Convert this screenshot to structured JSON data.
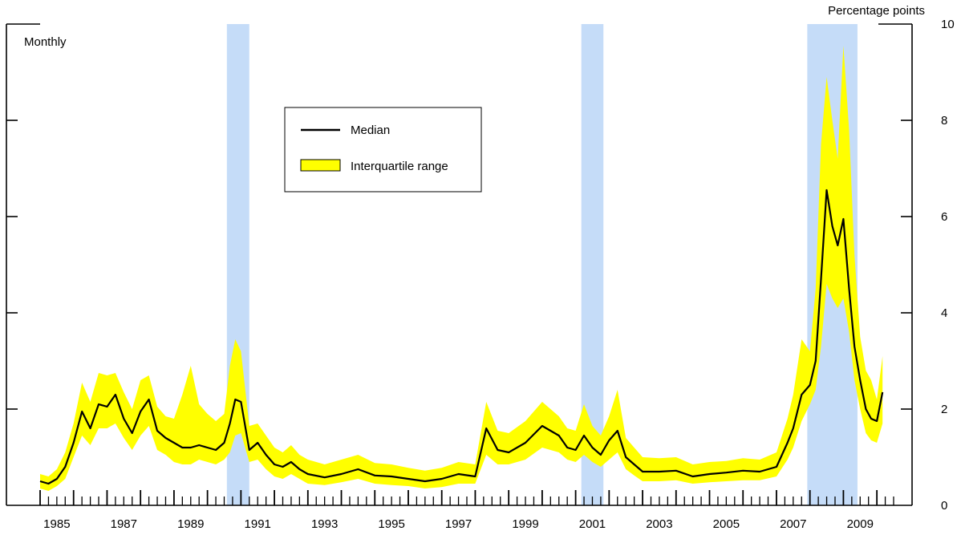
{
  "chart_data": {
    "type": "area",
    "frequency_label": "Monthly",
    "y_unit_label": "Percentage points",
    "ylim": [
      0,
      10
    ],
    "y_ticks": [
      0,
      2,
      4,
      6,
      8,
      10
    ],
    "xlim": [
      1984.5,
      2010.5
    ],
    "x_tick_labels": [
      "1985",
      "1987",
      "1989",
      "1991",
      "1993",
      "1995",
      "1997",
      "1999",
      "2001",
      "2003",
      "2005",
      "2007",
      "2009"
    ],
    "recessions": [
      {
        "start": 1990.58,
        "end": 1991.25
      },
      {
        "start": 2001.17,
        "end": 2001.83
      },
      {
        "start": 2007.92,
        "end": 2009.42
      }
    ],
    "legend": {
      "position": "upper-center",
      "entries": [
        {
          "label": "Median",
          "kind": "line"
        },
        {
          "label": "Interquartile range",
          "kind": "band"
        }
      ]
    },
    "colors": {
      "median": "#000000",
      "band": "#ffff00",
      "recession": "#c5dcf8"
    },
    "series": [
      {
        "name": "Median",
        "x": [
          1985.0,
          1985.25,
          1985.5,
          1985.75,
          1986.0,
          1986.25,
          1986.5,
          1986.75,
          1987.0,
          1987.25,
          1987.5,
          1987.75,
          1988.0,
          1988.25,
          1988.5,
          1988.75,
          1989.0,
          1989.25,
          1989.5,
          1989.75,
          1990.0,
          1990.25,
          1990.5,
          1990.67,
          1990.83,
          1991.0,
          1991.25,
          1991.5,
          1991.75,
          1992.0,
          1992.25,
          1992.5,
          1992.75,
          1993.0,
          1993.5,
          1994.0,
          1994.5,
          1995.0,
          1995.5,
          1996.0,
          1996.5,
          1997.0,
          1997.5,
          1998.0,
          1998.33,
          1998.67,
          1999.0,
          1999.5,
          2000.0,
          2000.5,
          2000.75,
          2001.0,
          2001.25,
          2001.5,
          2001.75,
          2002.0,
          2002.25,
          2002.5,
          2002.75,
          2003.0,
          2003.5,
          2004.0,
          2004.5,
          2005.0,
          2005.5,
          2006.0,
          2006.5,
          2007.0,
          2007.33,
          2007.5,
          2007.75,
          2008.0,
          2008.17,
          2008.33,
          2008.5,
          2008.67,
          2008.83,
          2009.0,
          2009.17,
          2009.33,
          2009.5,
          2009.67,
          2009.83,
          2010.0,
          2010.17
        ],
        "values": [
          0.5,
          0.45,
          0.55,
          0.8,
          1.3,
          1.95,
          1.6,
          2.1,
          2.05,
          2.3,
          1.8,
          1.5,
          1.95,
          2.2,
          1.55,
          1.4,
          1.3,
          1.2,
          1.2,
          1.25,
          1.2,
          1.15,
          1.3,
          1.7,
          2.2,
          2.15,
          1.15,
          1.3,
          1.05,
          0.85,
          0.8,
          0.9,
          0.75,
          0.65,
          0.58,
          0.65,
          0.75,
          0.62,
          0.6,
          0.55,
          0.5,
          0.55,
          0.65,
          0.6,
          1.6,
          1.15,
          1.1,
          1.3,
          1.65,
          1.45,
          1.2,
          1.15,
          1.45,
          1.2,
          1.05,
          1.35,
          1.55,
          1.0,
          0.85,
          0.7,
          0.7,
          0.72,
          0.6,
          0.65,
          0.68,
          0.72,
          0.7,
          0.8,
          1.3,
          1.6,
          2.3,
          2.5,
          3.0,
          4.7,
          6.55,
          5.8,
          5.4,
          5.95,
          4.5,
          3.3,
          2.6,
          2.0,
          1.8,
          1.75,
          2.35
        ]
      },
      {
        "name": "Interquartile range",
        "x": [
          1985.0,
          1985.25,
          1985.5,
          1985.75,
          1986.0,
          1986.25,
          1986.5,
          1986.75,
          1987.0,
          1987.25,
          1987.5,
          1987.75,
          1988.0,
          1988.25,
          1988.5,
          1988.75,
          1989.0,
          1989.25,
          1989.5,
          1989.75,
          1990.0,
          1990.25,
          1990.5,
          1990.67,
          1990.83,
          1991.0,
          1991.25,
          1991.5,
          1991.75,
          1992.0,
          1992.25,
          1992.5,
          1992.75,
          1993.0,
          1993.5,
          1994.0,
          1994.5,
          1995.0,
          1995.5,
          1996.0,
          1996.5,
          1997.0,
          1997.5,
          1998.0,
          1998.33,
          1998.67,
          1999.0,
          1999.5,
          2000.0,
          2000.5,
          2000.75,
          2001.0,
          2001.25,
          2001.5,
          2001.75,
          2002.0,
          2002.25,
          2002.5,
          2002.75,
          2003.0,
          2003.5,
          2004.0,
          2004.5,
          2005.0,
          2005.5,
          2006.0,
          2006.5,
          2007.0,
          2007.33,
          2007.5,
          2007.75,
          2008.0,
          2008.17,
          2008.33,
          2008.5,
          2008.67,
          2008.83,
          2009.0,
          2009.17,
          2009.33,
          2009.5,
          2009.67,
          2009.83,
          2010.0,
          2010.17
        ],
        "lower": [
          0.35,
          0.3,
          0.4,
          0.55,
          1.0,
          1.45,
          1.25,
          1.6,
          1.6,
          1.7,
          1.4,
          1.15,
          1.45,
          1.65,
          1.15,
          1.05,
          0.9,
          0.85,
          0.85,
          0.95,
          0.9,
          0.85,
          0.95,
          1.1,
          1.45,
          1.5,
          0.9,
          0.95,
          0.75,
          0.6,
          0.55,
          0.65,
          0.55,
          0.45,
          0.42,
          0.48,
          0.55,
          0.45,
          0.42,
          0.4,
          0.35,
          0.38,
          0.45,
          0.45,
          1.05,
          0.85,
          0.85,
          0.95,
          1.2,
          1.1,
          0.95,
          0.9,
          1.05,
          0.9,
          0.8,
          0.95,
          1.1,
          0.75,
          0.62,
          0.5,
          0.5,
          0.52,
          0.45,
          0.48,
          0.5,
          0.52,
          0.52,
          0.6,
          0.95,
          1.2,
          1.75,
          2.1,
          2.4,
          3.3,
          4.6,
          4.3,
          4.1,
          4.3,
          3.6,
          2.6,
          2.0,
          1.5,
          1.35,
          1.3,
          1.7
        ],
        "upper": [
          0.65,
          0.6,
          0.75,
          1.1,
          1.7,
          2.55,
          2.15,
          2.75,
          2.7,
          2.75,
          2.35,
          2.0,
          2.6,
          2.7,
          2.05,
          1.85,
          1.8,
          2.3,
          2.9,
          2.1,
          1.9,
          1.75,
          1.9,
          2.9,
          3.45,
          3.2,
          1.65,
          1.7,
          1.45,
          1.2,
          1.1,
          1.25,
          1.05,
          0.95,
          0.85,
          0.95,
          1.05,
          0.88,
          0.85,
          0.78,
          0.72,
          0.78,
          0.9,
          0.85,
          2.15,
          1.55,
          1.5,
          1.75,
          2.15,
          1.85,
          1.6,
          1.55,
          2.1,
          1.65,
          1.45,
          1.85,
          2.4,
          1.4,
          1.2,
          1.0,
          0.98,
          1.0,
          0.85,
          0.9,
          0.92,
          0.98,
          0.95,
          1.1,
          1.8,
          2.3,
          3.45,
          3.2,
          4.5,
          7.5,
          8.9,
          8.0,
          7.2,
          9.55,
          7.8,
          5.2,
          3.5,
          2.8,
          2.6,
          2.2,
          3.1
        ]
      }
    ]
  }
}
